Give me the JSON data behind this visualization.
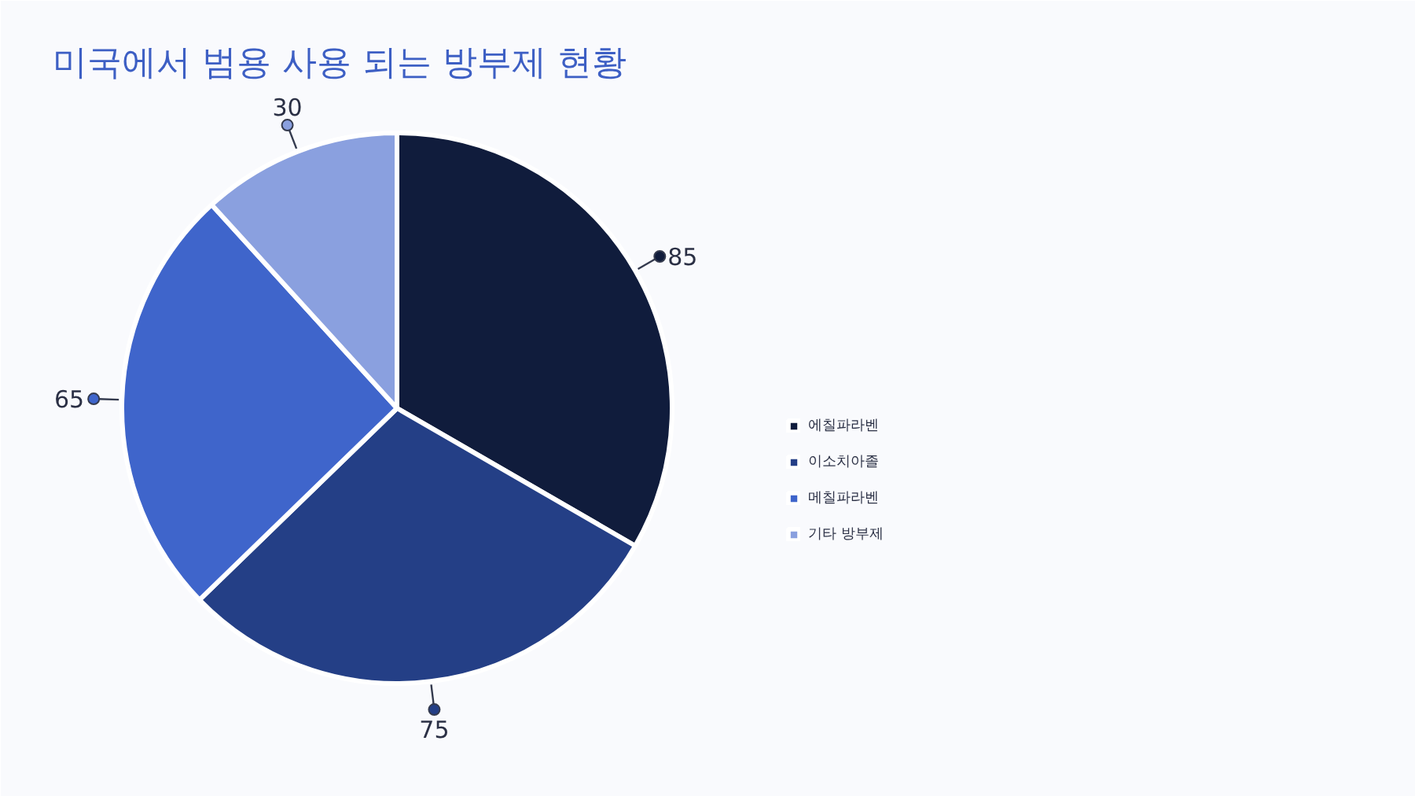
{
  "chart_data": {
    "type": "pie",
    "title": "미국에서 범용 사용 되는 방부제 현황",
    "categories": [
      "에칠파라벤",
      "이소치아졸",
      "메칠파라벤",
      "기타 방부제"
    ],
    "values": [
      85,
      75,
      65,
      30
    ],
    "colors": [
      "#101c3c",
      "#243f86",
      "#3f65cb",
      "#8aa0df"
    ],
    "data_labels": true,
    "legend": "right"
  }
}
